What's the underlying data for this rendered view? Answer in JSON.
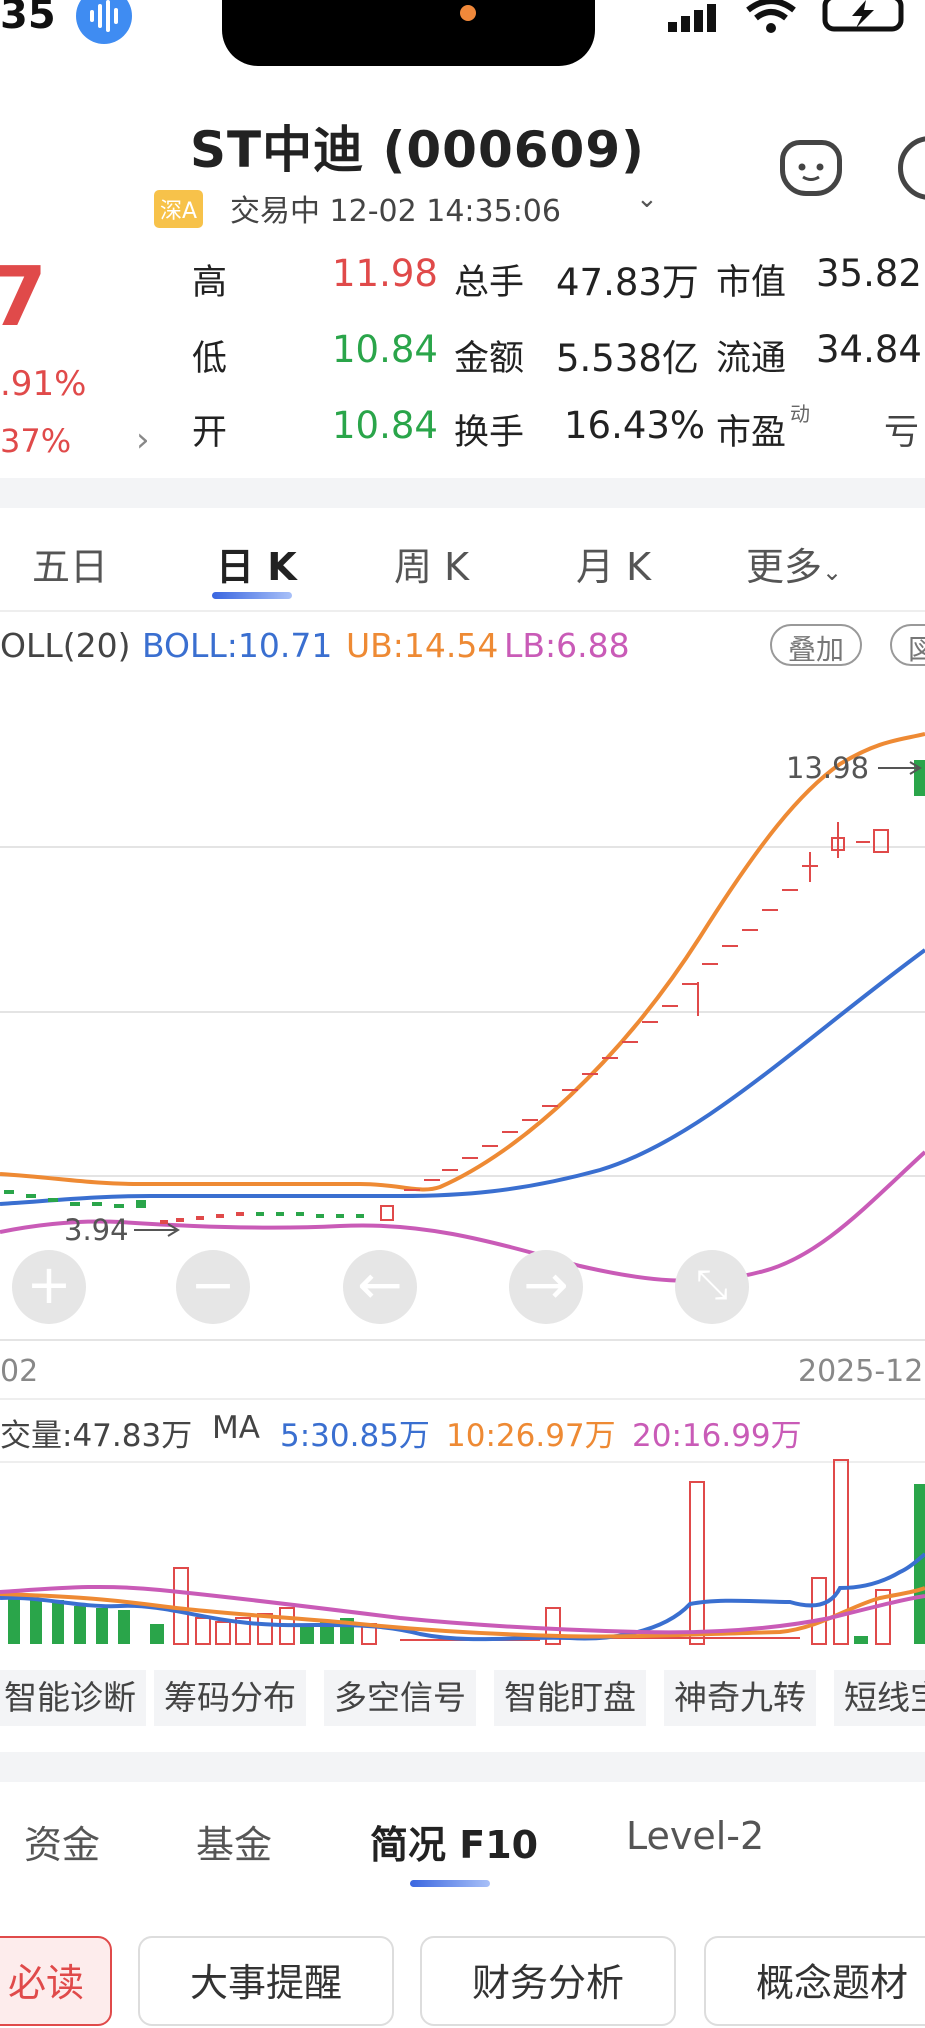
{
  "status_bar": {
    "time": "35"
  },
  "header": {
    "title": "ST中迪 (000609)",
    "market_badge": "深A",
    "trade_status": "交易中 12-02 14:35:06",
    "price_partial": "7",
    "change_pct": ".91%",
    "change2": "37%"
  },
  "quote": {
    "high_label": "高",
    "high": "11.98",
    "low_label": "低",
    "low": "10.84",
    "open_label": "开",
    "open": "10.84",
    "total_hands_label": "总手",
    "total_hands": "47.83万",
    "amount_label": "金额",
    "amount": "5.538亿",
    "turnover_label": "换手",
    "turnover": "16.43%",
    "mcap_label": "市值",
    "mcap": "35.82",
    "float_label": "流通",
    "float": "34.84",
    "pe_label": "市盈",
    "pe_sup": "动",
    "pe": "亏"
  },
  "ktabs": [
    "五日",
    "日 K",
    "周 K",
    "月 K",
    "更多"
  ],
  "indicator": {
    "name": "OLL(20)",
    "boll": "BOLL:10.71",
    "ub": "UB:14.54",
    "lb": "LB:6.88",
    "overlay_btn": "叠加",
    "other_btn": "図"
  },
  "chart": {
    "high_label": "13.98",
    "low_label": "3.94",
    "date_left": "02",
    "date_right": "2025-12",
    "colors": {
      "up": "#e04a4a",
      "down": "#2aa54a",
      "mid": "#3a6fd0",
      "ub": "#ee8a34",
      "lb": "#c95bb7"
    }
  },
  "volume": {
    "label": "交量:47.83万",
    "ma": "MA",
    "ma5": "5:30.85万",
    "ma10": "10:26.97万",
    "ma20": "20:16.99万"
  },
  "tools": [
    "智能诊断",
    "筹码分布",
    "多空信号",
    "智能盯盘",
    "神奇九转",
    "短线宝"
  ],
  "bottom_tabs": [
    "资金",
    "基金",
    "简况 F10",
    "Level-2"
  ],
  "cards": [
    "必读",
    "大事提醒",
    "财务分析",
    "概念题材"
  ]
}
